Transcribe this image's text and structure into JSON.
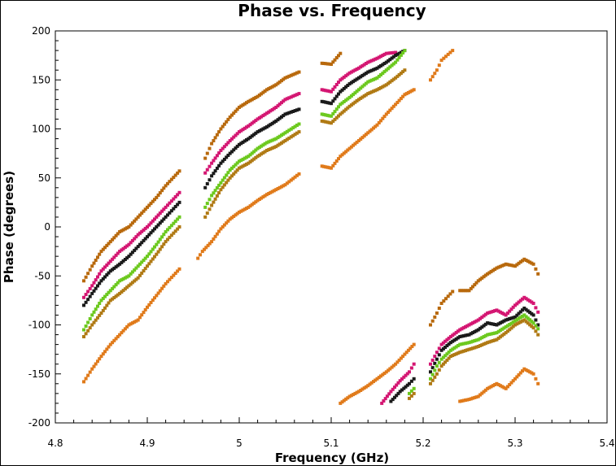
{
  "chart_data": {
    "type": "scatter",
    "title": "Phase vs. Frequency",
    "xlabel": "Frequency (GHz)",
    "ylabel": "Phase (degrees)",
    "xlim": [
      4.8,
      5.4
    ],
    "ylim": [
      -200,
      200
    ],
    "xticks": [
      "4.8",
      "4.9",
      "5",
      "5.1",
      "5.2",
      "5.3",
      "5.4"
    ],
    "yticks": [
      "200",
      "150",
      "100",
      "50",
      "0",
      "-50",
      "-100",
      "-150",
      "-200"
    ],
    "grid": false,
    "legend": "none",
    "series": [
      {
        "color": "#b8690c",
        "segments": [
          {
            "x": [
              4.831,
              4.84,
              4.85,
              4.86,
              4.87,
              4.88,
              4.89,
              4.9,
              4.91,
              4.92,
              4.935
            ],
            "y": [
              -55,
              -40,
              -25,
              -15,
              -5,
              0,
              10,
              20,
              30,
              42,
              57
            ]
          },
          {
            "x": [
              4.963,
              4.97,
              4.98,
              4.99,
              5.0,
              5.01,
              5.02,
              5.03,
              5.04,
              5.05,
              5.065
            ],
            "y": [
              70,
              85,
              100,
              112,
              122,
              128,
              133,
              140,
              145,
              152,
              158
            ]
          },
          {
            "x": [
              5.09,
              5.1,
              5.11
            ],
            "y": [
              167,
              166,
              177
            ]
          },
          {
            "x": [
              5.208,
              5.215,
              5.22,
              5.232
            ],
            "y": [
              -100,
              -88,
              -78,
              -66
            ]
          },
          {
            "x": [
              5.24,
              5.25,
              5.26,
              5.27,
              5.28,
              5.29,
              5.3,
              5.31,
              5.32,
              5.325
            ],
            "y": [
              -65,
              -65,
              -55,
              -48,
              -42,
              -38,
              -40,
              -33,
              -38,
              -48
            ]
          }
        ]
      },
      {
        "color": "#d41672",
        "segments": [
          {
            "x": [
              4.831,
              4.84,
              4.85,
              4.86,
              4.87,
              4.88,
              4.89,
              4.9,
              4.91,
              4.92,
              4.935
            ],
            "y": [
              -72,
              -60,
              -45,
              -35,
              -25,
              -18,
              -8,
              0,
              10,
              20,
              35
            ]
          },
          {
            "x": [
              4.963,
              4.97,
              4.98,
              4.99,
              5.0,
              5.01,
              5.02,
              5.03,
              5.04,
              5.05,
              5.065
            ],
            "y": [
              55,
              65,
              78,
              88,
              97,
              103,
              110,
              116,
              122,
              130,
              136
            ]
          },
          {
            "x": [
              5.09,
              5.1,
              5.11,
              5.12,
              5.13,
              5.14,
              5.15,
              5.16,
              5.17
            ],
            "y": [
              140,
              138,
              150,
              157,
              162,
              168,
              172,
              177,
              178
            ]
          },
          {
            "x": [
              5.155,
              5.165,
              5.175,
              5.185,
              5.19
            ],
            "y": [
              -180,
              -168,
              -157,
              -148,
              -140
            ]
          },
          {
            "x": [
              5.208,
              5.215,
              5.22,
              5.23,
              5.24,
              5.25,
              5.26,
              5.27,
              5.28,
              5.29,
              5.3,
              5.31,
              5.32,
              5.325
            ],
            "y": [
              -140,
              -128,
              -120,
              -112,
              -105,
              -100,
              -95,
              -88,
              -85,
              -90,
              -80,
              -72,
              -78,
              -87
            ]
          }
        ]
      },
      {
        "color": "#1a1a1a",
        "segments": [
          {
            "x": [
              4.831,
              4.84,
              4.85,
              4.86,
              4.87,
              4.88,
              4.89,
              4.9,
              4.91,
              4.92,
              4.935
            ],
            "y": [
              -80,
              -68,
              -55,
              -45,
              -38,
              -30,
              -20,
              -10,
              0,
              10,
              25
            ]
          },
          {
            "x": [
              4.963,
              4.97,
              4.98,
              4.99,
              5.0,
              5.01,
              5.02,
              5.03,
              5.04,
              5.05,
              5.065
            ],
            "y": [
              40,
              52,
              65,
              75,
              84,
              90,
              97,
              102,
              108,
              115,
              120
            ]
          },
          {
            "x": [
              5.09,
              5.1,
              5.11,
              5.12,
              5.13,
              5.14,
              5.15,
              5.16,
              5.17,
              5.18
            ],
            "y": [
              128,
              126,
              138,
              146,
              152,
              158,
              162,
              168,
              175,
              180
            ]
          },
          {
            "x": [
              5.165,
              5.175,
              5.185,
              5.19
            ],
            "y": [
              -178,
              -168,
              -160,
              -155
            ]
          },
          {
            "x": [
              5.208,
              5.215,
              5.22,
              5.23,
              5.24,
              5.25,
              5.26,
              5.27,
              5.28,
              5.29,
              5.3,
              5.31,
              5.32,
              5.325
            ],
            "y": [
              -148,
              -135,
              -126,
              -118,
              -112,
              -110,
              -105,
              -98,
              -100,
              -95,
              -92,
              -83,
              -90,
              -100
            ]
          }
        ]
      },
      {
        "color": "#6cc91e",
        "segments": [
          {
            "x": [
              4.831,
              4.84,
              4.85,
              4.86,
              4.87,
              4.88,
              4.89,
              4.9,
              4.91,
              4.92,
              4.935
            ],
            "y": [
              -105,
              -90,
              -75,
              -65,
              -55,
              -50,
              -40,
              -30,
              -18,
              -5,
              10
            ]
          },
          {
            "x": [
              4.963,
              4.97,
              4.98,
              4.99,
              5.0,
              5.01,
              5.02,
              5.03,
              5.04,
              5.05,
              5.065
            ],
            "y": [
              20,
              32,
              45,
              58,
              67,
              72,
              80,
              86,
              90,
              96,
              105
            ]
          },
          {
            "x": [
              5.09,
              5.1,
              5.11,
              5.12,
              5.13,
              5.14,
              5.15,
              5.16,
              5.17,
              5.18
            ],
            "y": [
              115,
              113,
              125,
              132,
              140,
              148,
              152,
              160,
              168,
              180
            ]
          },
          {
            "x": [
              5.185,
              5.19
            ],
            "y": [
              -170,
              -165
            ]
          },
          {
            "x": [
              5.208,
              5.215,
              5.22,
              5.23,
              5.24,
              5.25,
              5.26,
              5.27,
              5.28,
              5.29,
              5.3,
              5.31,
              5.32,
              5.325
            ],
            "y": [
              -155,
              -142,
              -135,
              -126,
              -120,
              -118,
              -115,
              -110,
              -108,
              -102,
              -96,
              -90,
              -98,
              -104
            ]
          }
        ]
      },
      {
        "color": "#b07a14",
        "segments": [
          {
            "x": [
              4.831,
              4.84,
              4.85,
              4.86,
              4.87,
              4.88,
              4.89,
              4.9,
              4.91,
              4.92,
              4.935
            ],
            "y": [
              -112,
              -100,
              -88,
              -75,
              -68,
              -60,
              -52,
              -40,
              -28,
              -15,
              0
            ]
          },
          {
            "x": [
              4.963,
              4.97,
              4.98,
              4.99,
              5.0,
              5.01,
              5.02,
              5.03,
              5.04,
              5.05,
              5.065
            ],
            "y": [
              10,
              22,
              38,
              50,
              60,
              65,
              72,
              78,
              82,
              88,
              97
            ]
          },
          {
            "x": [
              5.09,
              5.1,
              5.11,
              5.12,
              5.13,
              5.14,
              5.15,
              5.16,
              5.17,
              5.18
            ],
            "y": [
              108,
              106,
              115,
              123,
              130,
              136,
              140,
              145,
              152,
              160
            ]
          },
          {
            "x": [
              5.185,
              5.19
            ],
            "y": [
              -175,
              -170
            ]
          },
          {
            "x": [
              5.208,
              5.215,
              5.22,
              5.23,
              5.24,
              5.25,
              5.26,
              5.27,
              5.28,
              5.29,
              5.3,
              5.31,
              5.32,
              5.325
            ],
            "y": [
              -160,
              -150,
              -142,
              -132,
              -128,
              -125,
              -122,
              -118,
              -115,
              -108,
              -100,
              -95,
              -103,
              -110
            ]
          }
        ]
      },
      {
        "color": "#e07a1a",
        "segments": [
          {
            "x": [
              4.831,
              4.84,
              4.85,
              4.86,
              4.87,
              4.88,
              4.89,
              4.9,
              4.91,
              4.92,
              4.935
            ],
            "y": [
              -158,
              -145,
              -132,
              -120,
              -110,
              -100,
              -95,
              -82,
              -70,
              -58,
              -43
            ]
          },
          {
            "x": [
              4.955,
              4.96,
              4.97,
              4.98,
              4.99,
              5.0,
              5.01,
              5.02,
              5.03,
              5.04,
              5.05,
              5.065
            ],
            "y": [
              -32,
              -25,
              -15,
              -2,
              8,
              15,
              20,
              27,
              33,
              38,
              43,
              54
            ]
          },
          {
            "x": [
              5.09,
              5.1,
              5.11,
              5.12,
              5.13,
              5.14,
              5.15,
              5.16,
              5.17,
              5.18,
              5.19
            ],
            "y": [
              62,
              60,
              72,
              80,
              88,
              96,
              104,
              115,
              125,
              135,
              140
            ]
          },
          {
            "x": [
              5.11,
              5.12,
              5.13,
              5.14,
              5.15,
              5.16,
              5.17,
              5.18,
              5.19
            ],
            "y": [
              -180,
              -173,
              -168,
              -162,
              -155,
              -148,
              -140,
              -130,
              -120
            ]
          },
          {
            "x": [
              5.208,
              5.215,
              5.22,
              5.232
            ],
            "y": [
              150,
              160,
              170,
              180
            ]
          },
          {
            "x": [
              5.24,
              5.25,
              5.26,
              5.27,
              5.28,
              5.29,
              5.3,
              5.31,
              5.32,
              5.325
            ],
            "y": [
              -178,
              -176,
              -173,
              -165,
              -160,
              -165,
              -155,
              -145,
              -150,
              -160
            ]
          }
        ]
      }
    ]
  }
}
